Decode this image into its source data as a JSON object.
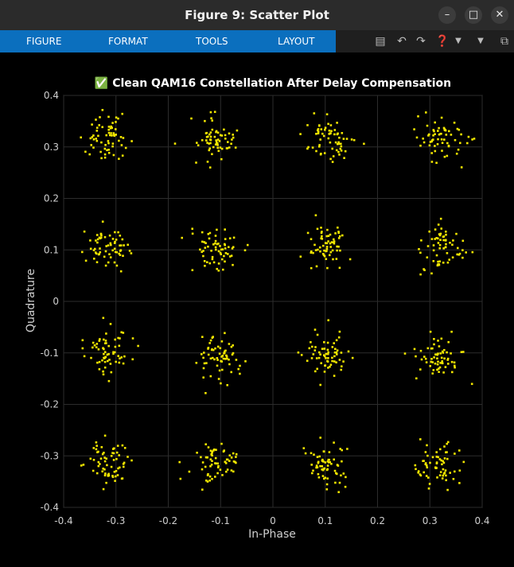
{
  "window": {
    "title": "Figure 9: Scatter Plot"
  },
  "toolbar": {
    "tabs": [
      "FIGURE",
      "FORMAT",
      "TOOLS",
      "LAYOUT"
    ]
  },
  "colors": {
    "accent": "#0b6fbe",
    "points": "#f2e600",
    "background": "#000000"
  },
  "chart_data": {
    "type": "scatter",
    "title": "✅ Clean QAM16 Constellation After Delay Compensation",
    "xlabel": "In-Phase",
    "ylabel": "Quadrature",
    "xlim": [
      -0.4,
      0.4
    ],
    "ylim": [
      -0.4,
      0.4
    ],
    "xticks": [
      -0.4,
      -0.3,
      -0.2,
      -0.1,
      0,
      0.1,
      0.2,
      0.3,
      0.4
    ],
    "yticks": [
      -0.4,
      -0.3,
      -0.2,
      -0.1,
      0,
      0.1,
      0.2,
      0.3,
      0.4
    ],
    "xtick_labels": [
      "-0.4",
      "-0.3",
      "-0.2",
      "-0.1",
      "0",
      "0.1",
      "0.2",
      "0.3",
      "0.4"
    ],
    "ytick_labels": [
      "-0.4",
      "-0.3",
      "-0.2",
      "-0.1",
      "0",
      "0.1",
      "0.2",
      "0.3",
      "0.4"
    ],
    "grid": true,
    "cluster_centers": [
      -0.3162,
      -0.1054,
      0.1054,
      0.3162
    ],
    "points_per_cluster": 64,
    "cluster_spread": 0.022
  }
}
